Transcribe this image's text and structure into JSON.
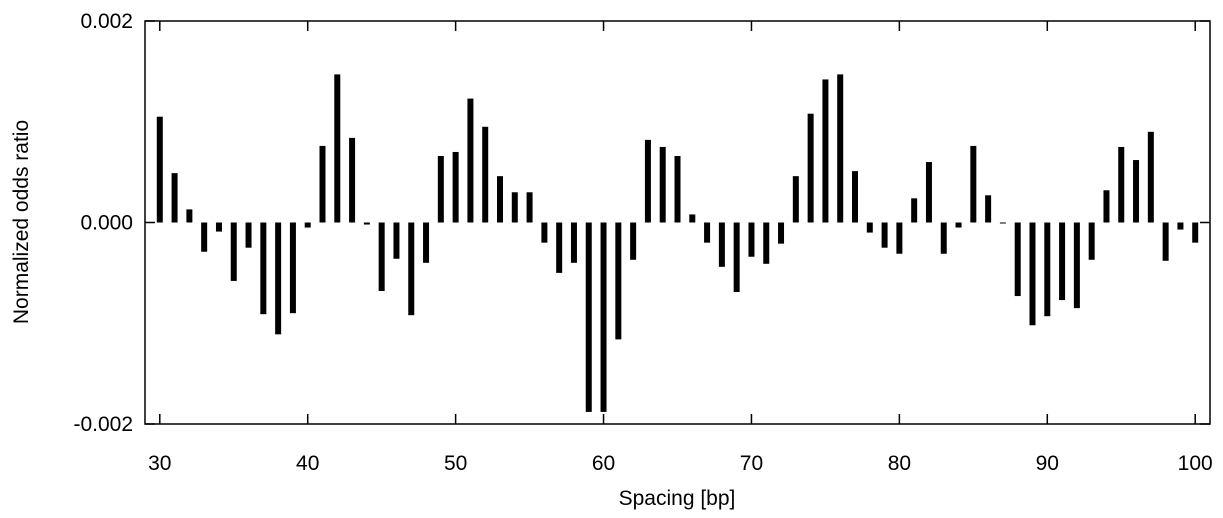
{
  "chart_data": {
    "type": "bar",
    "title": "",
    "xlabel": "Spacing [bp]",
    "ylabel": "Normalized odds ratio",
    "xlim": [
      29,
      101
    ],
    "ylim": [
      -0.002,
      0.002
    ],
    "grid": false,
    "bar_color": "#000000",
    "xticks": [
      30,
      40,
      50,
      60,
      70,
      80,
      90,
      100
    ],
    "xtick_labels": [
      "30",
      "40",
      "50",
      "60",
      "70",
      "80",
      "90",
      "100"
    ],
    "yticks": [
      -0.002,
      0.0,
      0.002
    ],
    "ytick_labels": [
      "-0.002",
      "0.000",
      "0.002"
    ],
    "x": [
      30,
      31,
      32,
      33,
      34,
      35,
      36,
      37,
      38,
      39,
      40,
      41,
      42,
      43,
      44,
      45,
      46,
      47,
      48,
      49,
      50,
      51,
      52,
      53,
      54,
      55,
      56,
      57,
      58,
      59,
      60,
      61,
      62,
      63,
      64,
      65,
      66,
      67,
      68,
      69,
      70,
      71,
      72,
      73,
      74,
      75,
      76,
      77,
      78,
      79,
      80,
      81,
      82,
      83,
      84,
      85,
      86,
      87,
      88,
      89,
      90,
      91,
      92,
      93,
      94,
      95,
      96,
      97,
      98,
      99,
      100
    ],
    "values": [
      0.00105,
      0.00049,
      0.00013,
      -0.00029,
      -9e-05,
      -0.00058,
      -0.00025,
      -0.00091,
      -0.00111,
      -0.0009,
      -5e-05,
      0.00076,
      0.00147,
      0.00084,
      -2e-05,
      -0.00068,
      -0.00036,
      -0.00092,
      -0.0004,
      0.00066,
      0.0007,
      0.00123,
      0.00095,
      0.00046,
      0.0003,
      0.0003,
      -0.0002,
      -0.0005,
      -0.0004,
      -0.00188,
      -0.00188,
      -0.00116,
      -0.00037,
      0.00082,
      0.00075,
      0.00066,
      8e-05,
      -0.0002,
      -0.00044,
      -0.00069,
      -0.00034,
      -0.00041,
      -0.00021,
      0.00046,
      0.00108,
      0.00142,
      0.00147,
      0.00051,
      -0.0001,
      -0.00025,
      -0.00031,
      0.00024,
      0.0006,
      -0.00031,
      -5e-05,
      0.00076,
      0.00027,
      -1e-05,
      -0.00073,
      -0.00102,
      -0.00093,
      -0.00077,
      -0.00085,
      -0.00037,
      0.00032,
      0.00075,
      0.00062,
      0.0009,
      -0.00038,
      -7e-05,
      -0.0002
    ]
  }
}
